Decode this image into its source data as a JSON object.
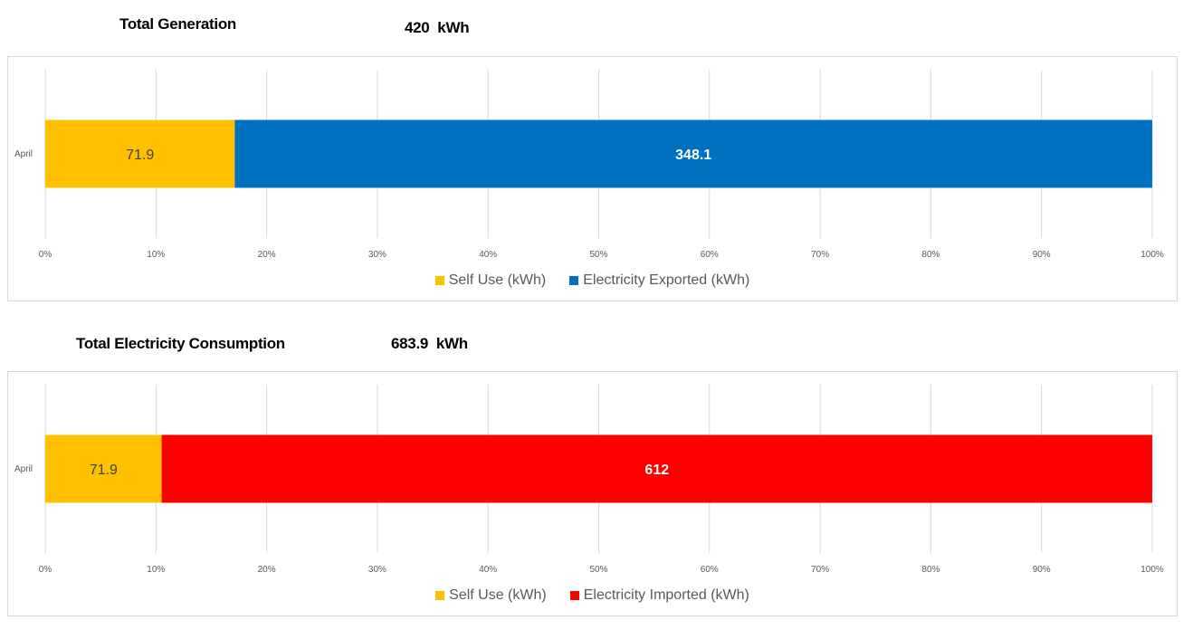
{
  "sections": [
    {
      "title": "Total Generation",
      "total": "420  kWh"
    },
    {
      "title": "Total Electricity Consumption",
      "total": "683.9  kWh"
    }
  ],
  "chart_data": [
    {
      "type": "bar",
      "orientation": "horizontal",
      "stacked": "100%",
      "categories": [
        "April"
      ],
      "series": [
        {
          "name": "Self Use (kWh)",
          "values": [
            71.9
          ],
          "color": "#FFC000",
          "label_color": "#404040"
        },
        {
          "name": "Electricity Exported (kWh)",
          "values": [
            348.1
          ],
          "color": "#0070C0",
          "label_color": "#FFFFFF"
        }
      ],
      "xlim": [
        0,
        100
      ],
      "xticks": [
        "0%",
        "10%",
        "20%",
        "30%",
        "40%",
        "50%",
        "60%",
        "70%",
        "80%",
        "90%",
        "100%"
      ],
      "grid": true,
      "legend": "bottom"
    },
    {
      "type": "bar",
      "orientation": "horizontal",
      "stacked": "100%",
      "categories": [
        "April"
      ],
      "series": [
        {
          "name": "Self Use (kWh)",
          "values": [
            71.9
          ],
          "color": "#FFC000",
          "label_color": "#404040"
        },
        {
          "name": "Electricity Imported (kWh)",
          "values": [
            612
          ],
          "color": "#FF0000",
          "label_color": "#FFFFFF"
        }
      ],
      "xlim": [
        0,
        100
      ],
      "xticks": [
        "0%",
        "10%",
        "20%",
        "30%",
        "40%",
        "50%",
        "60%",
        "70%",
        "80%",
        "90%",
        "100%"
      ],
      "grid": true,
      "legend": "bottom"
    }
  ]
}
